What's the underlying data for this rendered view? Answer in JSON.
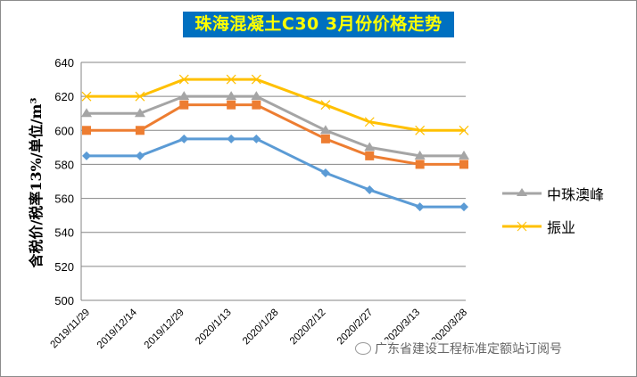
{
  "chart_data": {
    "type": "line",
    "title": "珠海混凝土C30 3月份价格走势",
    "xlabel": "",
    "ylabel": "含税价/税率13%/单位/m³",
    "ylim": [
      500,
      640
    ],
    "yticks": [
      500,
      520,
      540,
      560,
      580,
      600,
      620,
      640
    ],
    "x_axis": "date",
    "xlim": [
      "2019/11/29",
      "2020/3/28"
    ],
    "xtick_labels": [
      "2019/11/29",
      "2019/12/14",
      "2019/12/29",
      "2020/1/13",
      "2020/1/28",
      "2020/2/12",
      "2020/2/27",
      "2020/3/13",
      "2020/3/28"
    ],
    "x": [
      "2019/11/29",
      "2019/12/16",
      "2019/12/30",
      "2020/1/14",
      "2020/1/22",
      "2020/2/13",
      "2020/2/27",
      "2020/3/14",
      "2020/3/28"
    ],
    "grid": "horizontal",
    "legend_position": "right",
    "series": [
      {
        "values": [
          585,
          585,
          595,
          595,
          595,
          575,
          565,
          555,
          555
        ],
        "color": "#5b9bd5",
        "marker": "diamond"
      },
      {
        "values": [
          600,
          600,
          615,
          615,
          615,
          595,
          585,
          580,
          580
        ],
        "color": "#ed7d31",
        "marker": "square"
      },
      {
        "name": "中珠澳峰",
        "values": [
          610,
          610,
          620,
          620,
          620,
          600,
          590,
          585,
          585
        ],
        "color": "#a5a5a5",
        "marker": "triangle"
      },
      {
        "name": "振业",
        "values": [
          620,
          620,
          630,
          630,
          630,
          615,
          605,
          600,
          600
        ],
        "color": "#ffc000",
        "marker": "x"
      }
    ]
  },
  "watermark": "广东省建设工程标准定额站订阅号"
}
